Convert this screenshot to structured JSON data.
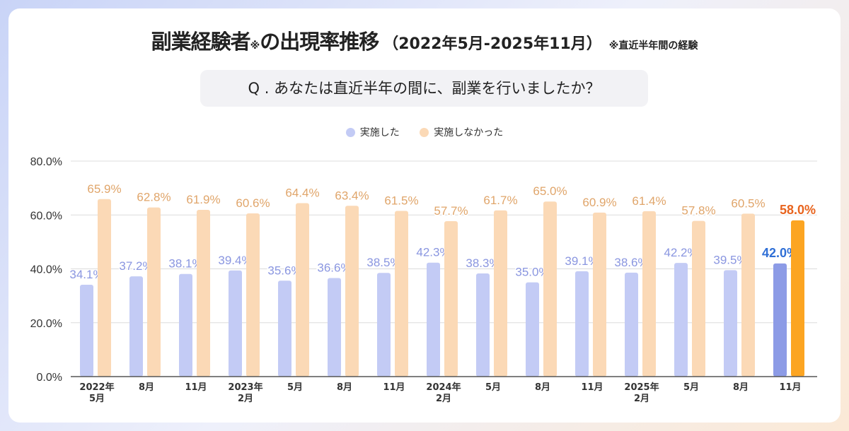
{
  "chart_data": {
    "type": "bar",
    "title": "副業経験者",
    "title_mark": "※",
    "title_suffix": "の出現率推移",
    "title_range": "（2022年5月-2025年11月）",
    "title_note": "※直近半年間の経験",
    "question": "Q . あなたは直近半年の間に、副業を行いましたか？",
    "categories": [
      [
        "2022年",
        "5月"
      ],
      [
        "8月"
      ],
      [
        "11月"
      ],
      [
        "2023年",
        "2月"
      ],
      [
        "5月"
      ],
      [
        "8月"
      ],
      [
        "11月"
      ],
      [
        "2024年",
        "2月"
      ],
      [
        "5月"
      ],
      [
        "8月"
      ],
      [
        "11月"
      ],
      [
        "2025年",
        "2月"
      ],
      [
        "5月"
      ],
      [
        "8月"
      ],
      [
        "11月"
      ]
    ],
    "series": [
      {
        "name": "実施した",
        "color": "#c3cbf5",
        "highlight_color": "#8c9be6",
        "label_color": "#8a96e0",
        "highlight_label_color": "#2f6fd6",
        "values": [
          34.1,
          37.2,
          38.1,
          39.4,
          35.6,
          36.6,
          38.5,
          42.3,
          38.3,
          35.0,
          39.1,
          38.6,
          42.2,
          39.5,
          42.0
        ]
      },
      {
        "name": "実施しなかった",
        "color": "#fbd9b6",
        "highlight_color": "#fca522",
        "label_color": "#e0a56a",
        "highlight_label_color": "#e8641e",
        "values": [
          65.9,
          62.8,
          61.9,
          60.6,
          64.4,
          63.4,
          61.5,
          57.7,
          61.7,
          65.0,
          60.9,
          61.4,
          57.8,
          60.5,
          58.0
        ]
      }
    ],
    "yticks": [
      "0.0%",
      "20.0%",
      "40.0%",
      "60.0%",
      "80.0%"
    ],
    "ylim": [
      0,
      80
    ],
    "grid": true,
    "legend_position": "top-center",
    "highlighted_category_index": 14
  }
}
